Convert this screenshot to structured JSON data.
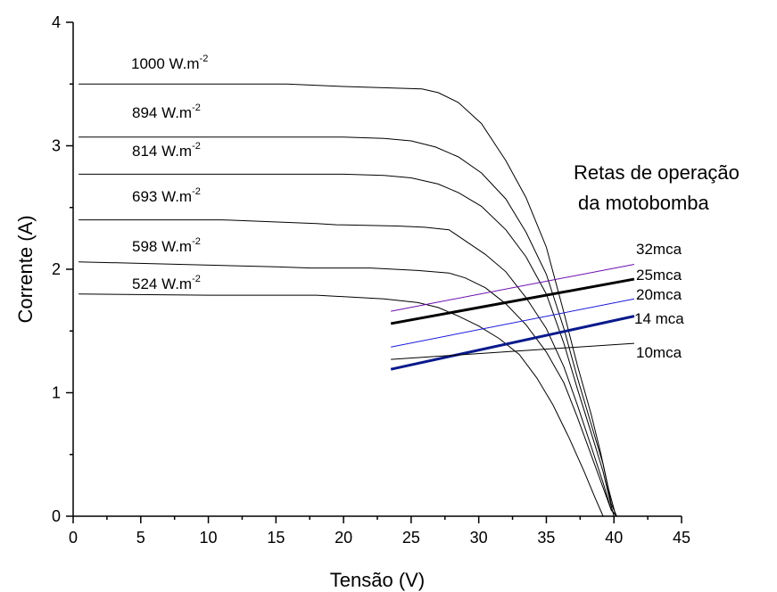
{
  "chart_data": {
    "type": "line",
    "xlabel": "Tensão (V)",
    "ylabel": "Corrente (A)",
    "xlim": [
      0,
      45
    ],
    "ylim": [
      0,
      4
    ],
    "x_major_ticks": [
      0,
      5,
      10,
      15,
      20,
      25,
      30,
      35,
      40,
      45
    ],
    "y_major_ticks": [
      0,
      1,
      2,
      3,
      4
    ],
    "iv_curves": [
      {
        "label": "1000 W.m",
        "sup": "-2",
        "points": [
          [
            0.4,
            3.5
          ],
          [
            15.8,
            3.5
          ],
          [
            20,
            3.48
          ],
          [
            25.8,
            3.46
          ],
          [
            27,
            3.43
          ],
          [
            28.5,
            3.35
          ],
          [
            30.2,
            3.18
          ],
          [
            32,
            2.88
          ],
          [
            33.5,
            2.58
          ],
          [
            35,
            2.18
          ],
          [
            36.3,
            1.65
          ],
          [
            37.3,
            1.22
          ],
          [
            38.3,
            0.83
          ],
          [
            39,
            0.52
          ],
          [
            39.6,
            0.22
          ],
          [
            40.1,
            0.02
          ]
        ]
      },
      {
        "label": "894 W.m",
        "sup": "-2",
        "points": [
          [
            0.4,
            3.07
          ],
          [
            15,
            3.07
          ],
          [
            20,
            3.07
          ],
          [
            23,
            3.06
          ],
          [
            25,
            3.04
          ],
          [
            26.8,
            2.99
          ],
          [
            28.5,
            2.91
          ],
          [
            30.2,
            2.78
          ],
          [
            32,
            2.57
          ],
          [
            33.5,
            2.3
          ],
          [
            35,
            1.96
          ],
          [
            36.3,
            1.52
          ],
          [
            37.3,
            1.12
          ],
          [
            38.3,
            0.75
          ],
          [
            39.2,
            0.42
          ],
          [
            39.8,
            0.1
          ],
          [
            40.2,
            0.0
          ]
        ]
      },
      {
        "label": "814 W.m",
        "sup": "-2",
        "points": [
          [
            0.4,
            2.77
          ],
          [
            15,
            2.77
          ],
          [
            20,
            2.77
          ],
          [
            23,
            2.76
          ],
          [
            25,
            2.74
          ],
          [
            27,
            2.69
          ],
          [
            28.5,
            2.62
          ],
          [
            30.2,
            2.51
          ],
          [
            32,
            2.32
          ],
          [
            33.5,
            2.1
          ],
          [
            35,
            1.8
          ],
          [
            36.3,
            1.4
          ],
          [
            37.3,
            1.03
          ],
          [
            38.3,
            0.68
          ],
          [
            39.2,
            0.36
          ],
          [
            39.8,
            0.08
          ],
          [
            40.0,
            0.0
          ]
        ]
      },
      {
        "label": "693 W.m",
        "sup": "-2",
        "points": [
          [
            0.4,
            2.4
          ],
          [
            11,
            2.4
          ],
          [
            18,
            2.37
          ],
          [
            19.5,
            2.36
          ],
          [
            24,
            2.35
          ],
          [
            26,
            2.34
          ],
          [
            27.8,
            2.32
          ],
          [
            29,
            2.23
          ],
          [
            30.5,
            2.12
          ],
          [
            32,
            1.98
          ],
          [
            33.5,
            1.77
          ],
          [
            35,
            1.52
          ],
          [
            36.3,
            1.21
          ],
          [
            37.3,
            0.9
          ],
          [
            38.3,
            0.57
          ],
          [
            39.2,
            0.27
          ],
          [
            39.8,
            0.05
          ],
          [
            40.2,
            0.0
          ]
        ]
      },
      {
        "label": "598 W.m",
        "sup": "-2",
        "points": [
          [
            0.4,
            2.06
          ],
          [
            15,
            2.02
          ],
          [
            17.6,
            2.01
          ],
          [
            22,
            2.01
          ],
          [
            25.5,
            1.99
          ],
          [
            27.8,
            1.97
          ],
          [
            29,
            1.93
          ],
          [
            30.5,
            1.85
          ],
          [
            32,
            1.72
          ],
          [
            33.5,
            1.55
          ],
          [
            35,
            1.33
          ],
          [
            36.3,
            1.08
          ],
          [
            37.3,
            0.8
          ],
          [
            38.3,
            0.5
          ],
          [
            39.2,
            0.23
          ],
          [
            39.8,
            0.05
          ],
          [
            40.2,
            0.0
          ]
        ]
      },
      {
        "label": "524 W.m",
        "sup": "-2",
        "points": [
          [
            0.4,
            1.8
          ],
          [
            10,
            1.79
          ],
          [
            18,
            1.79
          ],
          [
            23,
            1.76
          ],
          [
            25.5,
            1.73
          ],
          [
            27,
            1.69
          ],
          [
            28.5,
            1.62
          ],
          [
            30,
            1.54
          ],
          [
            31.5,
            1.44
          ],
          [
            33,
            1.31
          ],
          [
            34.3,
            1.12
          ],
          [
            35.5,
            0.9
          ],
          [
            36.7,
            0.63
          ],
          [
            37.8,
            0.36
          ],
          [
            38.6,
            0.15
          ],
          [
            39.2,
            0.0
          ]
        ]
      }
    ],
    "operation_lines": [
      {
        "label": "32mca",
        "color": "#6a0dad",
        "width": 1,
        "points": [
          [
            23.5,
            1.66
          ],
          [
            41.5,
            2.04
          ]
        ]
      },
      {
        "label": "25mca",
        "color": "#000000",
        "width": 3,
        "points": [
          [
            23.5,
            1.56
          ],
          [
            41.5,
            1.92
          ]
        ]
      },
      {
        "label": "20mca",
        "color": "#1a1adb",
        "width": 1,
        "points": [
          [
            23.5,
            1.37
          ],
          [
            41.5,
            1.76
          ]
        ]
      },
      {
        "label": "14 mca",
        "color": "#0a1a8c",
        "width": 3,
        "points": [
          [
            23.5,
            1.19
          ],
          [
            41.5,
            1.62
          ]
        ]
      },
      {
        "label": "10mca",
        "color": "#000000",
        "width": 1,
        "points": [
          [
            23.5,
            1.27
          ],
          [
            41.5,
            1.4
          ]
        ]
      }
    ],
    "annotation": [
      "Retas de operação",
      "da motobomba"
    ]
  }
}
